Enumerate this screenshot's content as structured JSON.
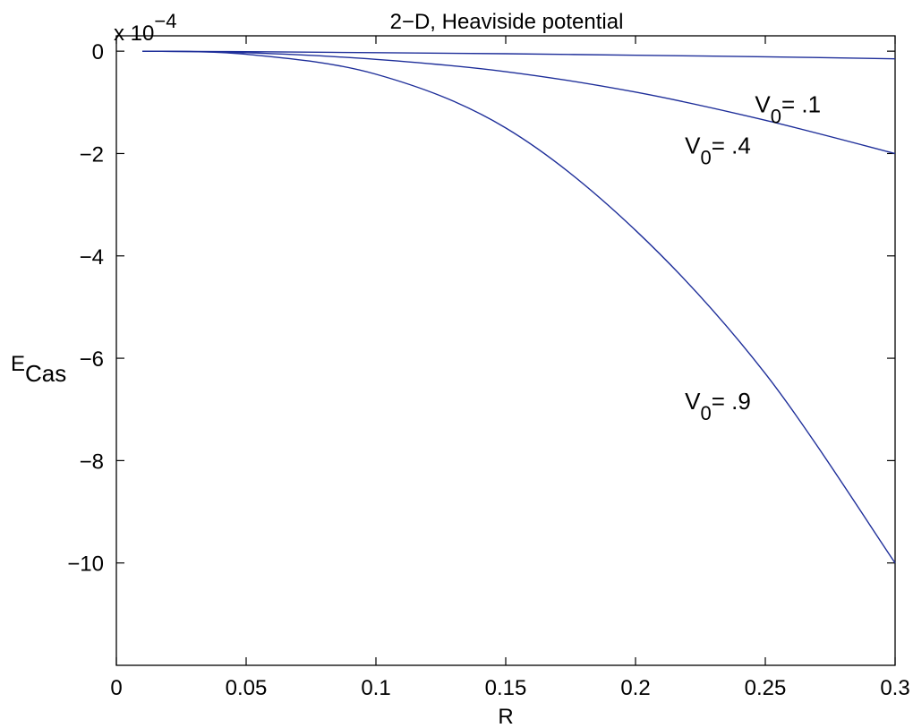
{
  "chart_data": {
    "type": "line",
    "title": "2−D,  Heaviside potential",
    "xlabel": "R",
    "ylabel": {
      "main": "E",
      "sub": "Cas"
    },
    "y_multiplier": {
      "base": "x 10",
      "exponent": "−4"
    },
    "xlim": [
      0,
      0.3
    ],
    "ylim": [
      -12,
      0.3
    ],
    "x_ticks": [
      0,
      0.05,
      0.1,
      0.15,
      0.2,
      0.25,
      0.3
    ],
    "x_tick_labels": [
      "0",
      "0.05",
      "0.1",
      "0.15",
      "0.2",
      "0.25",
      "0.3"
    ],
    "y_ticks": [
      0,
      -2,
      -4,
      -6,
      -8,
      -10
    ],
    "y_tick_labels": [
      "0",
      "−2",
      "−4",
      "−6",
      "−8",
      "−10"
    ],
    "grid": false,
    "line_color": "#1f2f9a",
    "series": [
      {
        "name": "V0 = .1",
        "x": [
          0.01,
          0.05,
          0.1,
          0.15,
          0.2,
          0.25,
          0.3
        ],
        "y": [
          0.0,
          -0.01,
          -0.03,
          -0.05,
          -0.08,
          -0.11,
          -0.15
        ]
      },
      {
        "name": "V0 = .4",
        "x": [
          0.01,
          0.05,
          0.1,
          0.15,
          0.2,
          0.25,
          0.3
        ],
        "y": [
          0.0,
          -0.03,
          -0.16,
          -0.4,
          -0.8,
          -1.35,
          -2.0
        ]
      },
      {
        "name": "V0 = .9",
        "x": [
          0.01,
          0.05,
          0.1,
          0.15,
          0.2,
          0.25,
          0.3
        ],
        "y": [
          0.0,
          -0.06,
          -0.45,
          -1.5,
          -3.5,
          -6.3,
          -10.0
        ]
      }
    ],
    "annotations": [
      {
        "main": "V",
        "sub": "0",
        "text": "= .1",
        "x": 0.246,
        "y": -1.2
      },
      {
        "main": "V",
        "sub": "0",
        "text": "= .4",
        "x": 0.219,
        "y": -2.0
      },
      {
        "main": "V",
        "sub": "0",
        "text": "= .9",
        "x": 0.219,
        "y": -7.0
      }
    ]
  }
}
